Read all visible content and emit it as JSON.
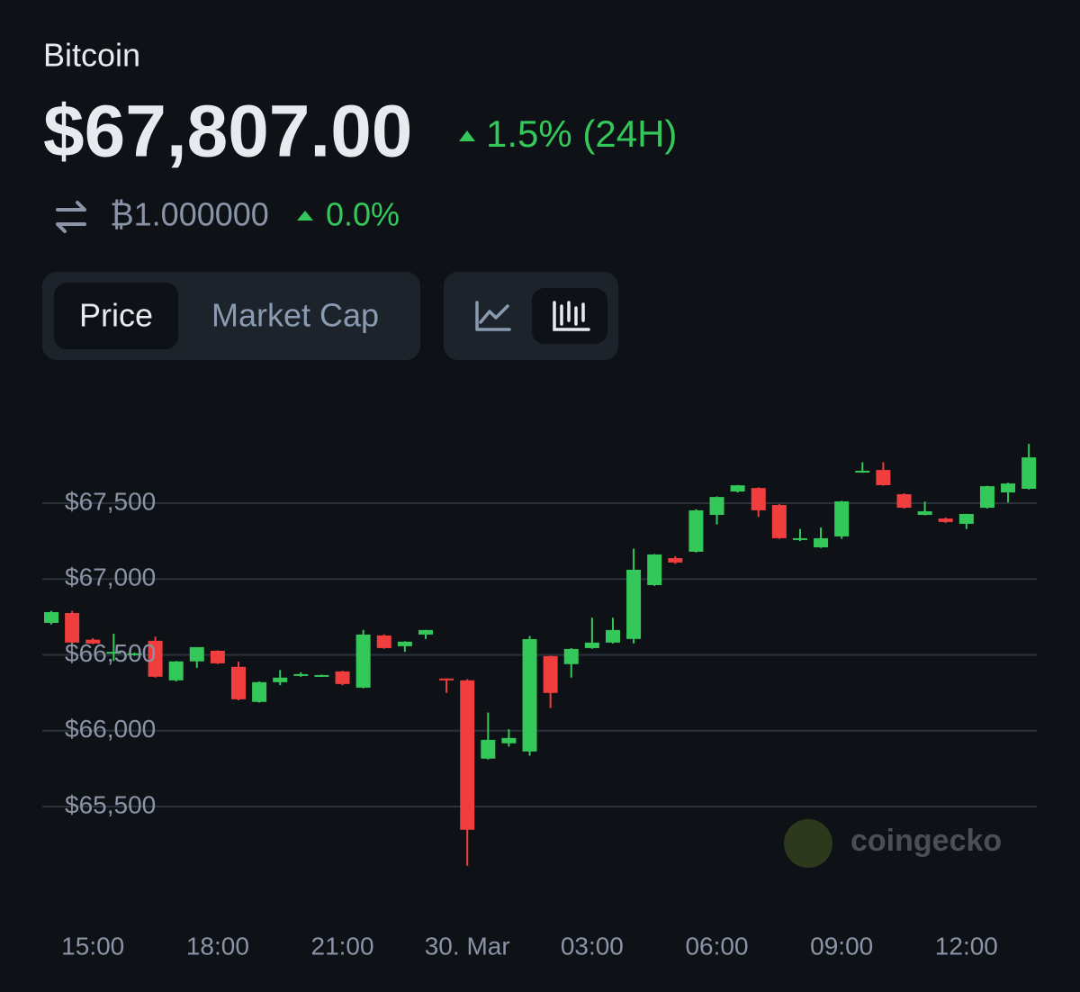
{
  "header": {
    "asset": "Bitcoin",
    "price": "$67,807.00",
    "change_24h": "1.5% (24H)",
    "btc_price": "₿1.000000",
    "btc_change": "0.0%"
  },
  "tabs": [
    "Price",
    "Market Cap"
  ],
  "watermark": "coingecko",
  "chart_data": {
    "type": "candlestick",
    "categories": [
      null,
      null,
      "15:00",
      null,
      null,
      null,
      null,
      null,
      "18:00",
      null,
      null,
      null,
      null,
      null,
      "21:00",
      null,
      null,
      null,
      null,
      null,
      "30. Mar",
      null,
      null,
      null,
      null,
      null,
      "03:00",
      null,
      null,
      null,
      null,
      null,
      "06:00",
      null,
      null,
      null,
      null,
      null,
      "09:00",
      null,
      null,
      null,
      null,
      null,
      "12:00",
      null,
      null,
      null
    ],
    "open": [
      66711,
      66776,
      66600,
      66510,
      66500,
      66593,
      66332,
      66457,
      66527,
      66421,
      66190,
      66320,
      66361,
      66361,
      66391,
      66284,
      66628,
      66557,
      66634,
      66344,
      66332,
      65816,
      65917,
      65863,
      66492,
      66439,
      66545,
      66581,
      66605,
      66960,
      67138,
      67180,
      67423,
      67577,
      67600,
      67488,
      67257,
      67209,
      67281,
      67702,
      67719,
      67559,
      67423,
      67399,
      67364,
      67470,
      67571,
      67595
    ],
    "high": [
      66790,
      66790,
      66610,
      66640,
      66515,
      66620,
      66460,
      66551,
      66530,
      66455,
      66325,
      66400,
      66385,
      66370,
      66395,
      66665,
      66635,
      66590,
      66665,
      66345,
      66340,
      66120,
      66010,
      66625,
      66495,
      66545,
      66745,
      66745,
      67200,
      67165,
      67150,
      67460,
      67545,
      67620,
      67605,
      67495,
      67330,
      67340,
      67515,
      67770,
      67770,
      67565,
      67510,
      67405,
      67430,
      67615,
      67635,
      67891
    ],
    "low": [
      66700,
      66575,
      66570,
      66460,
      66495,
      66350,
      66325,
      66415,
      66440,
      66200,
      66185,
      66300,
      66355,
      66355,
      66300,
      66280,
      66540,
      66520,
      66605,
      66250,
      65110,
      65810,
      65895,
      65835,
      66150,
      66350,
      66540,
      66575,
      66575,
      66955,
      67100,
      67175,
      67360,
      67570,
      67410,
      67265,
      67250,
      67205,
      67265,
      67700,
      67615,
      67465,
      67420,
      67370,
      67330,
      67465,
      67505,
      67590
    ],
    "close": [
      66782,
      66581,
      66575,
      66520,
      66510,
      66356,
      66457,
      66551,
      66444,
      66207,
      66320,
      66350,
      66373,
      66367,
      66308,
      66634,
      66545,
      66587,
      66664,
      66338,
      65347,
      65940,
      65952,
      66604,
      66249,
      66539,
      66581,
      66664,
      67061,
      67162,
      67109,
      67453,
      67541,
      67618,
      67453,
      67269,
      67269,
      67269,
      67512,
      67714,
      67619,
      67470,
      67447,
      67376,
      67429,
      67612,
      67630,
      67802
    ],
    "up_color": "#34c759",
    "down_color": "#f03d3d",
    "ylim": [
      64900,
      68000
    ],
    "yticks": [
      {
        "value": 65500,
        "label": "$65,500"
      },
      {
        "value": 66000,
        "label": "$66,000"
      },
      {
        "value": 66500,
        "label": "$66,500"
      },
      {
        "value": 67000,
        "label": "$67,000"
      },
      {
        "value": 67500,
        "label": "$67,500"
      }
    ],
    "grid": true
  }
}
